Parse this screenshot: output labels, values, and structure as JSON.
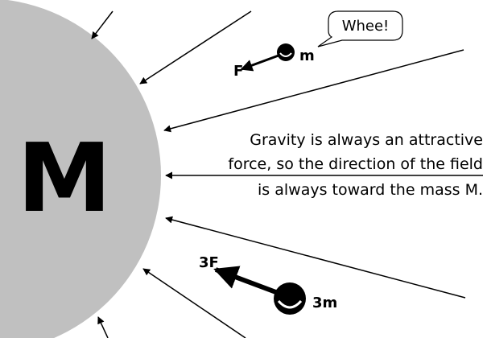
{
  "planet": {
    "label": "M"
  },
  "small_mass": {
    "label": "m",
    "force": "F",
    "speech": "Whee!"
  },
  "large_mass": {
    "label": "3m",
    "force": "3F"
  },
  "caption": [
    "Gravity is always an attractive",
    "force, so the direction of the field",
    "is always toward the mass M."
  ]
}
